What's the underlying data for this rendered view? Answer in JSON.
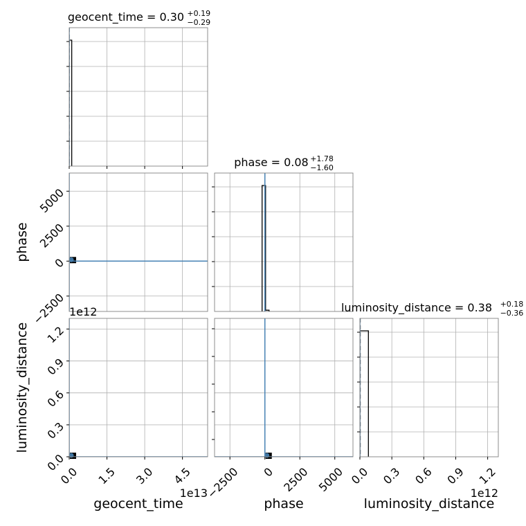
{
  "chart_data": {
    "type": "corner",
    "parameters": [
      "geocent_time",
      "phase",
      "luminosity_distance"
    ],
    "titles": [
      {
        "base": "geocent_time = 0.30",
        "plus": "+0.19",
        "minus": "−0.29"
      },
      {
        "base": "phase = 0.08",
        "plus": "+1.78",
        "minus": "−1.60"
      },
      {
        "base": "luminosity_distance = 0.38",
        "plus": "+0.18",
        "minus": "−0.36"
      }
    ],
    "ranges": {
      "geocent_time": [
        0,
        5.5
      ],
      "phase": [
        -3600,
        6300
      ],
      "luminosity_distance": [
        0,
        1.3
      ]
    },
    "offsets": {
      "geocent_time": "1e13",
      "luminosity_distance": "1e12"
    },
    "ticks": {
      "geocent_time": {
        "values": [
          0,
          1.5,
          3.0,
          4.5
        ],
        "labels": [
          "0.0",
          "1.5",
          "3.0",
          "4.5"
        ]
      },
      "phase": {
        "values": [
          -2500,
          0,
          2500,
          5000
        ],
        "labels": [
          "−2500",
          "0",
          "2500",
          "5000"
        ]
      },
      "luminosity_distance": {
        "values": [
          0,
          0.3,
          0.6,
          0.9,
          1.2
        ],
        "labels": [
          "0.0",
          "0.3",
          "0.6",
          "0.9",
          "1.2"
        ]
      }
    },
    "histograms": [
      {
        "param": "geocent_time",
        "bins": [
          [
            0,
            0.1,
            1
          ]
        ],
        "median": 0.01
      },
      {
        "param": "phase",
        "bins": [
          [
            -200,
            0,
            1
          ],
          [
            0,
            50,
            1
          ],
          [
            50,
            300,
            0.01
          ]
        ],
        "median": 8
      },
      {
        "param": "luminosity_distance",
        "bins": [
          [
            0,
            0.08,
            1
          ]
        ],
        "median": 0.005
      }
    ],
    "truth": {
      "geocent_time": 0,
      "phase": 0,
      "luminosity_distance": 0
    },
    "truth_color": "#4682b4",
    "hist_color": "#000000",
    "grid": true,
    "legend": "none"
  }
}
